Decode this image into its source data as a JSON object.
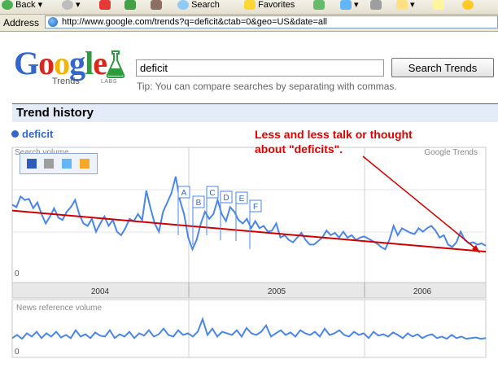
{
  "browser": {
    "toolbar": {
      "back_label": "Back",
      "search_label": "Search",
      "favorites_label": "Favorites"
    },
    "address": {
      "label": "Address",
      "url": "http://www.google.com/trends?q=deficit&ctab=0&geo=US&date=all"
    }
  },
  "logo": {
    "brand": "Google",
    "sub": "Trends",
    "labs": "LABS"
  },
  "search": {
    "query": "deficit",
    "button_label": "Search Trends",
    "tip": "Tip: You can compare searches by separating with commas."
  },
  "section": {
    "title": "Trend history"
  },
  "legend": {
    "term": "deficit",
    "color": "#3366cc"
  },
  "annotation": {
    "line1": "Less and less talk or thought",
    "line2": "about \"deficits\"."
  },
  "chart_data": {
    "type": "line",
    "title": "",
    "panels": [
      {
        "name": "Search volume",
        "label": "Search volume",
        "watermark": "Google Trends",
        "y_zero_label": "0",
        "series_color": "#4a86e8",
        "values": [
          0.58,
          0.56,
          0.65,
          0.62,
          0.63,
          0.55,
          0.6,
          0.5,
          0.42,
          0.48,
          0.55,
          0.47,
          0.45,
          0.52,
          0.56,
          0.62,
          0.5,
          0.42,
          0.4,
          0.46,
          0.35,
          0.42,
          0.48,
          0.4,
          0.45,
          0.35,
          0.32,
          0.38,
          0.46,
          0.44,
          0.5,
          0.45,
          0.7,
          0.55,
          0.42,
          0.35,
          0.52,
          0.6,
          0.68,
          0.82,
          0.62,
          0.5,
          0.3,
          0.2,
          0.28,
          0.42,
          0.52,
          0.46,
          0.5,
          0.62,
          0.5,
          0.44,
          0.56,
          0.52,
          0.45,
          0.42,
          0.46,
          0.38,
          0.44,
          0.38,
          0.4,
          0.35,
          0.36,
          0.42,
          0.3,
          0.32,
          0.28,
          0.26,
          0.3,
          0.34,
          0.28,
          0.24,
          0.24,
          0.27,
          0.3,
          0.36,
          0.32,
          0.34,
          0.3,
          0.35,
          0.3,
          0.32,
          0.28,
          0.3,
          0.31,
          0.29,
          0.27,
          0.25,
          0.22,
          0.2,
          0.28,
          0.4,
          0.32,
          0.38,
          0.36,
          0.34,
          0.33,
          0.38,
          0.35,
          0.38,
          0.4,
          0.36,
          0.3,
          0.32,
          0.24,
          0.22,
          0.26,
          0.35,
          0.28,
          0.25,
          0.26,
          0.24,
          0.25,
          0.23
        ],
        "trendline": {
          "color": "#d00000",
          "start": 0.53,
          "end": 0.18
        },
        "markers": [
          "A",
          "B",
          "C",
          "D",
          "E",
          "F"
        ]
      },
      {
        "name": "News reference volume",
        "label": "News reference volume",
        "y_zero_label": "0",
        "series_color": "#4a86e8",
        "values": [
          0.3,
          0.4,
          0.28,
          0.45,
          0.35,
          0.5,
          0.3,
          0.45,
          0.35,
          0.5,
          0.32,
          0.4,
          0.3,
          0.55,
          0.35,
          0.42,
          0.3,
          0.48,
          0.38,
          0.35,
          0.55,
          0.3,
          0.42,
          0.35,
          0.5,
          0.3,
          0.45,
          0.38,
          0.55,
          0.35,
          0.42,
          0.6,
          0.4,
          0.35,
          0.55,
          0.4,
          0.45,
          0.35,
          0.5,
          0.9,
          0.4,
          0.6,
          0.35,
          0.5,
          0.45,
          0.4,
          0.55,
          0.35,
          0.62,
          0.45,
          0.4,
          0.5,
          0.7,
          0.35,
          0.45,
          0.55,
          0.4,
          0.48,
          0.35,
          0.55,
          0.45,
          0.4,
          0.5,
          0.35,
          0.6,
          0.4,
          0.45,
          0.55,
          0.4,
          0.35,
          0.5,
          0.4,
          0.45,
          0.3,
          0.5,
          0.38,
          0.42,
          0.35,
          0.48,
          0.4,
          0.3,
          0.45,
          0.35,
          0.42,
          0.3,
          0.38,
          0.42,
          0.3,
          0.35,
          0.28,
          0.4,
          0.3,
          0.35,
          0.28,
          0.3,
          0.32,
          0.28,
          0.3
        ]
      }
    ],
    "x_axis": {
      "categories": [
        "2004",
        "2005",
        "2006"
      ]
    },
    "grid": true
  }
}
